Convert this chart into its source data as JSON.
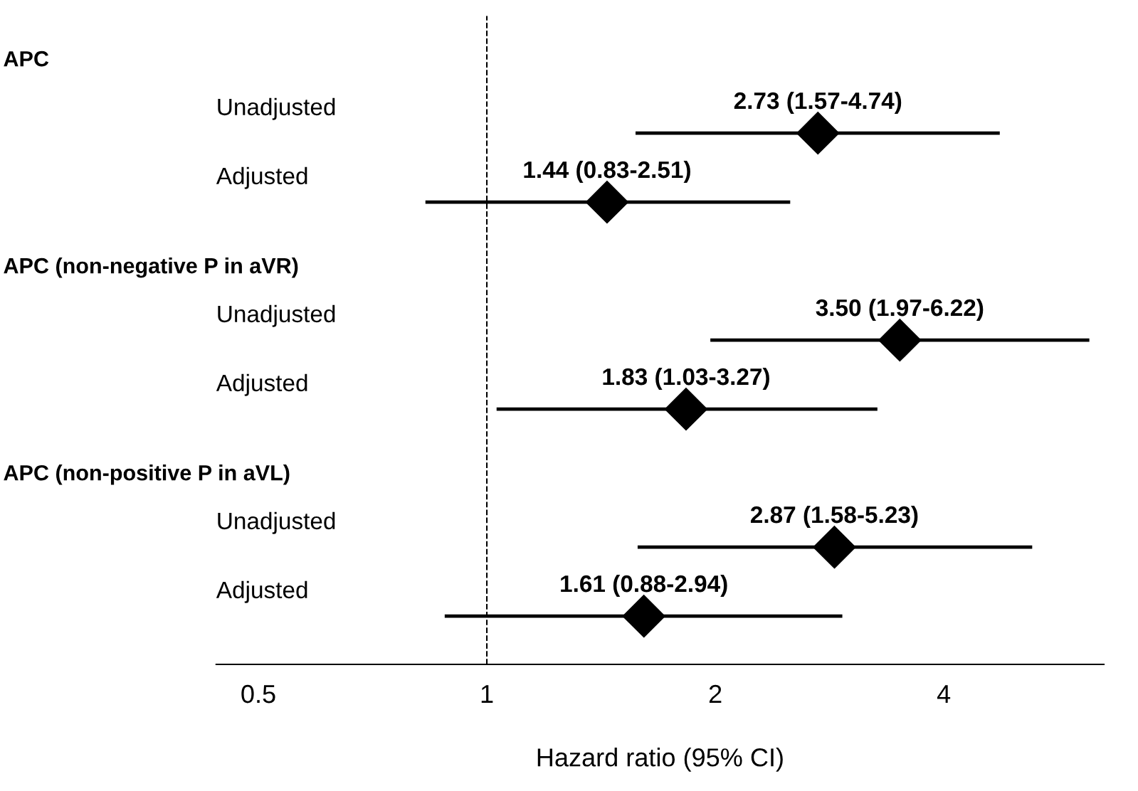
{
  "chart_data": {
    "type": "scatter",
    "orientation": "horizontal",
    "marker": "diamond",
    "color": "#000000",
    "categories": [
      null,
      "Unadjusted",
      "Adjusted",
      null,
      "Unadjusted",
      "Adjusted",
      null,
      "Unadjusted",
      "Adjusted"
    ],
    "annotations": [
      "APC",
      "APC (non-negative P in aVR)",
      "APC (non-positive P in aVL)"
    ],
    "values": [
      null,
      2.73,
      1.44,
      null,
      3.5,
      1.83,
      null,
      2.87,
      1.61
    ],
    "errors": [
      null,
      [
        1.57,
        4.74
      ],
      [
        0.83,
        2.51
      ],
      null,
      [
        1.97,
        6.22
      ],
      [
        1.03,
        3.27
      ],
      null,
      [
        1.58,
        5.23
      ],
      [
        0.88,
        2.94
      ]
    ],
    "value_labels": [
      null,
      "2.73 (1.57-4.74)",
      "1.44 (0.83-2.51)",
      null,
      "3.50 (1.97-6.22)",
      "1.83 (1.03-3.27)",
      null,
      "2.87 (1.58-5.23)",
      "1.61 (0.88-2.94)"
    ],
    "log": "x",
    "xlim": [
      0.44,
      6.5
    ],
    "xticks": [
      0.5,
      1,
      2,
      4
    ],
    "xlabel": "Hazard ratio (95% CI)",
    "ref_lines": [
      {
        "axis": "x",
        "value": 1,
        "line_style": "dashed",
        "color": "#000000"
      }
    ],
    "grid": false,
    "legend": false
  }
}
